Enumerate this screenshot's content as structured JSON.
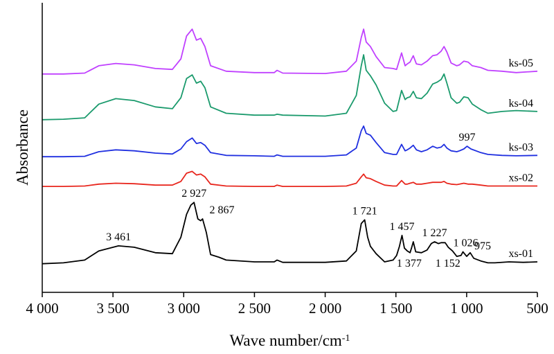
{
  "chart_data": {
    "type": "line",
    "xlabel": "Wave number/cm",
    "xlabel_superscript": "-1",
    "ylabel": "Absorbance",
    "xlim": [
      4000,
      500
    ],
    "x_reversed": true,
    "x_ticks": [
      4000,
      3500,
      3000,
      2500,
      2000,
      1500,
      1000,
      500
    ],
    "x_tick_labels": [
      "4 000",
      "3 500",
      "3 000",
      "2 500",
      "2 000",
      "1 500",
      "1 000",
      "500"
    ],
    "y_ticks_shown": false,
    "grid": false,
    "series": [
      {
        "name": "ks-05",
        "color": "#c040ff",
        "baseline": 4.15,
        "points": [
          [
            4000,
            0.02
          ],
          [
            3850,
            0.02
          ],
          [
            3700,
            0.04
          ],
          [
            3600,
            0.2
          ],
          [
            3480,
            0.25
          ],
          [
            3350,
            0.22
          ],
          [
            3200,
            0.14
          ],
          [
            3080,
            0.12
          ],
          [
            3020,
            0.35
          ],
          [
            2980,
            0.85
          ],
          [
            2940,
            1.0
          ],
          [
            2910,
            0.76
          ],
          [
            2880,
            0.8
          ],
          [
            2850,
            0.62
          ],
          [
            2810,
            0.2
          ],
          [
            2700,
            0.08
          ],
          [
            2500,
            0.05
          ],
          [
            2360,
            0.05
          ],
          [
            2340,
            0.1
          ],
          [
            2300,
            0.04
          ],
          [
            2000,
            0.03
          ],
          [
            1850,
            0.08
          ],
          [
            1780,
            0.3
          ],
          [
            1745,
            0.82
          ],
          [
            1728,
            1.0
          ],
          [
            1710,
            0.72
          ],
          [
            1680,
            0.62
          ],
          [
            1640,
            0.4
          ],
          [
            1580,
            0.16
          ],
          [
            1520,
            0.14
          ],
          [
            1495,
            0.12
          ],
          [
            1460,
            0.48
          ],
          [
            1435,
            0.2
          ],
          [
            1420,
            0.24
          ],
          [
            1400,
            0.28
          ],
          [
            1377,
            0.42
          ],
          [
            1355,
            0.24
          ],
          [
            1320,
            0.22
          ],
          [
            1280,
            0.3
          ],
          [
            1240,
            0.42
          ],
          [
            1210,
            0.44
          ],
          [
            1180,
            0.52
          ],
          [
            1160,
            0.62
          ],
          [
            1140,
            0.5
          ],
          [
            1110,
            0.26
          ],
          [
            1070,
            0.2
          ],
          [
            1050,
            0.22
          ],
          [
            1020,
            0.3
          ],
          [
            990,
            0.28
          ],
          [
            960,
            0.2
          ],
          [
            900,
            0.16
          ],
          [
            850,
            0.1
          ],
          [
            750,
            0.08
          ],
          [
            650,
            0.05
          ],
          [
            500,
            0.08
          ]
        ]
      },
      {
        "name": "ks-04",
        "color": "#1a9a6c",
        "baseline": 3.15,
        "points": [
          [
            4000,
            0.02
          ],
          [
            3850,
            0.03
          ],
          [
            3700,
            0.06
          ],
          [
            3600,
            0.36
          ],
          [
            3480,
            0.48
          ],
          [
            3350,
            0.44
          ],
          [
            3200,
            0.3
          ],
          [
            3080,
            0.26
          ],
          [
            3020,
            0.5
          ],
          [
            2980,
            0.92
          ],
          [
            2940,
            1.0
          ],
          [
            2910,
            0.82
          ],
          [
            2880,
            0.86
          ],
          [
            2850,
            0.72
          ],
          [
            2810,
            0.3
          ],
          [
            2700,
            0.16
          ],
          [
            2500,
            0.12
          ],
          [
            2360,
            0.12
          ],
          [
            2340,
            0.14
          ],
          [
            2300,
            0.12
          ],
          [
            2000,
            0.1
          ],
          [
            1850,
            0.16
          ],
          [
            1780,
            0.55
          ],
          [
            1745,
            1.2
          ],
          [
            1728,
            1.44
          ],
          [
            1710,
            1.1
          ],
          [
            1680,
            0.98
          ],
          [
            1640,
            0.78
          ],
          [
            1580,
            0.38
          ],
          [
            1520,
            0.2
          ],
          [
            1495,
            0.22
          ],
          [
            1460,
            0.66
          ],
          [
            1435,
            0.46
          ],
          [
            1420,
            0.5
          ],
          [
            1400,
            0.52
          ],
          [
            1377,
            0.64
          ],
          [
            1355,
            0.5
          ],
          [
            1320,
            0.48
          ],
          [
            1280,
            0.6
          ],
          [
            1240,
            0.8
          ],
          [
            1210,
            0.84
          ],
          [
            1180,
            0.9
          ],
          [
            1160,
            1.02
          ],
          [
            1140,
            0.82
          ],
          [
            1110,
            0.5
          ],
          [
            1070,
            0.38
          ],
          [
            1050,
            0.4
          ],
          [
            1020,
            0.52
          ],
          [
            990,
            0.5
          ],
          [
            960,
            0.36
          ],
          [
            900,
            0.24
          ],
          [
            850,
            0.16
          ],
          [
            750,
            0.2
          ],
          [
            650,
            0.22
          ],
          [
            500,
            0.2
          ]
        ]
      },
      {
        "name": "ks-03",
        "color": "#1f2fe0",
        "baseline": 2.35,
        "points": [
          [
            4000,
            0.01
          ],
          [
            3850,
            0.01
          ],
          [
            3700,
            0.02
          ],
          [
            3600,
            0.12
          ],
          [
            3480,
            0.16
          ],
          [
            3350,
            0.14
          ],
          [
            3200,
            0.09
          ],
          [
            3080,
            0.07
          ],
          [
            3020,
            0.18
          ],
          [
            2980,
            0.34
          ],
          [
            2940,
            0.42
          ],
          [
            2910,
            0.3
          ],
          [
            2880,
            0.32
          ],
          [
            2850,
            0.26
          ],
          [
            2810,
            0.1
          ],
          [
            2700,
            0.04
          ],
          [
            2500,
            0.03
          ],
          [
            2360,
            0.02
          ],
          [
            2340,
            0.05
          ],
          [
            2300,
            0.02
          ],
          [
            2000,
            0.02
          ],
          [
            1850,
            0.05
          ],
          [
            1780,
            0.2
          ],
          [
            1745,
            0.58
          ],
          [
            1728,
            0.68
          ],
          [
            1710,
            0.52
          ],
          [
            1680,
            0.48
          ],
          [
            1640,
            0.32
          ],
          [
            1580,
            0.1
          ],
          [
            1520,
            0.06
          ],
          [
            1495,
            0.06
          ],
          [
            1460,
            0.28
          ],
          [
            1435,
            0.14
          ],
          [
            1420,
            0.16
          ],
          [
            1400,
            0.2
          ],
          [
            1377,
            0.26
          ],
          [
            1355,
            0.16
          ],
          [
            1320,
            0.12
          ],
          [
            1280,
            0.16
          ],
          [
            1240,
            0.24
          ],
          [
            1210,
            0.2
          ],
          [
            1180,
            0.22
          ],
          [
            1160,
            0.28
          ],
          [
            1140,
            0.2
          ],
          [
            1110,
            0.14
          ],
          [
            1070,
            0.12
          ],
          [
            1050,
            0.14
          ],
          [
            1020,
            0.18
          ],
          [
            997,
            0.24
          ],
          [
            970,
            0.18
          ],
          [
            900,
            0.1
          ],
          [
            850,
            0.06
          ],
          [
            750,
            0.04
          ],
          [
            650,
            0.03
          ],
          [
            500,
            0.04
          ]
        ]
      },
      {
        "name": "xs-02",
        "color": "#e8261d",
        "baseline": 1.7,
        "points": [
          [
            4000,
            0.01
          ],
          [
            3850,
            0.01
          ],
          [
            3700,
            0.02
          ],
          [
            3600,
            0.06
          ],
          [
            3480,
            0.08
          ],
          [
            3350,
            0.07
          ],
          [
            3200,
            0.04
          ],
          [
            3080,
            0.04
          ],
          [
            3020,
            0.12
          ],
          [
            2980,
            0.3
          ],
          [
            2940,
            0.34
          ],
          [
            2910,
            0.26
          ],
          [
            2880,
            0.28
          ],
          [
            2850,
            0.22
          ],
          [
            2810,
            0.06
          ],
          [
            2700,
            0.02
          ],
          [
            2500,
            0.01
          ],
          [
            2360,
            0.01
          ],
          [
            2340,
            0.04
          ],
          [
            2300,
            0.01
          ],
          [
            2000,
            0.01
          ],
          [
            1850,
            0.02
          ],
          [
            1780,
            0.08
          ],
          [
            1745,
            0.22
          ],
          [
            1728,
            0.28
          ],
          [
            1710,
            0.2
          ],
          [
            1680,
            0.18
          ],
          [
            1640,
            0.12
          ],
          [
            1580,
            0.04
          ],
          [
            1520,
            0.02
          ],
          [
            1495,
            0.02
          ],
          [
            1460,
            0.14
          ],
          [
            1435,
            0.06
          ],
          [
            1420,
            0.06
          ],
          [
            1400,
            0.08
          ],
          [
            1377,
            0.1
          ],
          [
            1355,
            0.06
          ],
          [
            1320,
            0.06
          ],
          [
            1280,
            0.08
          ],
          [
            1240,
            0.1
          ],
          [
            1210,
            0.1
          ],
          [
            1180,
            0.1
          ],
          [
            1160,
            0.12
          ],
          [
            1140,
            0.08
          ],
          [
            1110,
            0.06
          ],
          [
            1070,
            0.05
          ],
          [
            1050,
            0.06
          ],
          [
            1020,
            0.08
          ],
          [
            990,
            0.06
          ],
          [
            960,
            0.06
          ],
          [
            900,
            0.04
          ],
          [
            850,
            0.02
          ],
          [
            750,
            0.02
          ],
          [
            650,
            0.02
          ],
          [
            500,
            0.02
          ]
        ]
      },
      {
        "name": "xs-01",
        "color": "#000000",
        "baseline": 0,
        "points": [
          [
            4000,
            0.02
          ],
          [
            3850,
            0.04
          ],
          [
            3700,
            0.1
          ],
          [
            3600,
            0.3
          ],
          [
            3461,
            0.41
          ],
          [
            3350,
            0.38
          ],
          [
            3200,
            0.26
          ],
          [
            3080,
            0.24
          ],
          [
            3020,
            0.6
          ],
          [
            2980,
            1.1
          ],
          [
            2950,
            1.3
          ],
          [
            2927,
            1.36
          ],
          [
            2900,
            1.0
          ],
          [
            2880,
            0.96
          ],
          [
            2867,
            1.0
          ],
          [
            2840,
            0.7
          ],
          [
            2810,
            0.22
          ],
          [
            2750,
            0.16
          ],
          [
            2700,
            0.1
          ],
          [
            2500,
            0.06
          ],
          [
            2360,
            0.06
          ],
          [
            2340,
            0.1
          ],
          [
            2300,
            0.05
          ],
          [
            2000,
            0.05
          ],
          [
            1850,
            0.08
          ],
          [
            1780,
            0.3
          ],
          [
            1745,
            0.9
          ],
          [
            1721,
            0.98
          ],
          [
            1700,
            0.6
          ],
          [
            1680,
            0.4
          ],
          [
            1640,
            0.24
          ],
          [
            1580,
            0.06
          ],
          [
            1520,
            0.1
          ],
          [
            1495,
            0.2
          ],
          [
            1475,
            0.4
          ],
          [
            1457,
            0.64
          ],
          [
            1440,
            0.36
          ],
          [
            1420,
            0.3
          ],
          [
            1400,
            0.26
          ],
          [
            1390,
            0.36
          ],
          [
            1377,
            0.5
          ],
          [
            1360,
            0.28
          ],
          [
            1320,
            0.26
          ],
          [
            1280,
            0.32
          ],
          [
            1250,
            0.46
          ],
          [
            1227,
            0.5
          ],
          [
            1200,
            0.46
          ],
          [
            1180,
            0.48
          ],
          [
            1152,
            0.48
          ],
          [
            1130,
            0.38
          ],
          [
            1100,
            0.3
          ],
          [
            1070,
            0.18
          ],
          [
            1040,
            0.2
          ],
          [
            1026,
            0.28
          ],
          [
            1000,
            0.18
          ],
          [
            975,
            0.26
          ],
          [
            950,
            0.14
          ],
          [
            900,
            0.08
          ],
          [
            850,
            0.04
          ],
          [
            800,
            0.04
          ],
          [
            700,
            0.06
          ],
          [
            600,
            0.05
          ],
          [
            500,
            0.06
          ]
        ]
      }
    ],
    "annotations": [
      {
        "text": "3 461",
        "x": 3461,
        "series": "xs-01"
      },
      {
        "text": "2 927",
        "x": 2927,
        "series": "xs-01"
      },
      {
        "text": "2 867",
        "x": 2867,
        "series": "xs-01"
      },
      {
        "text": "1 721",
        "x": 1721,
        "series": "xs-01"
      },
      {
        "text": "1 457",
        "x": 1457,
        "series": "xs-01"
      },
      {
        "text": "1 227",
        "x": 1227,
        "series": "xs-01"
      },
      {
        "text": "1 026",
        "x": 1026,
        "series": "xs-01"
      },
      {
        "text": "975",
        "x": 975,
        "series": "xs-01"
      },
      {
        "text": "1 377",
        "x": 1377,
        "series": "xs-01"
      },
      {
        "text": "1 152",
        "x": 1152,
        "series": "xs-01"
      },
      {
        "text": "997",
        "x": 997,
        "series": "ks-03"
      }
    ]
  }
}
